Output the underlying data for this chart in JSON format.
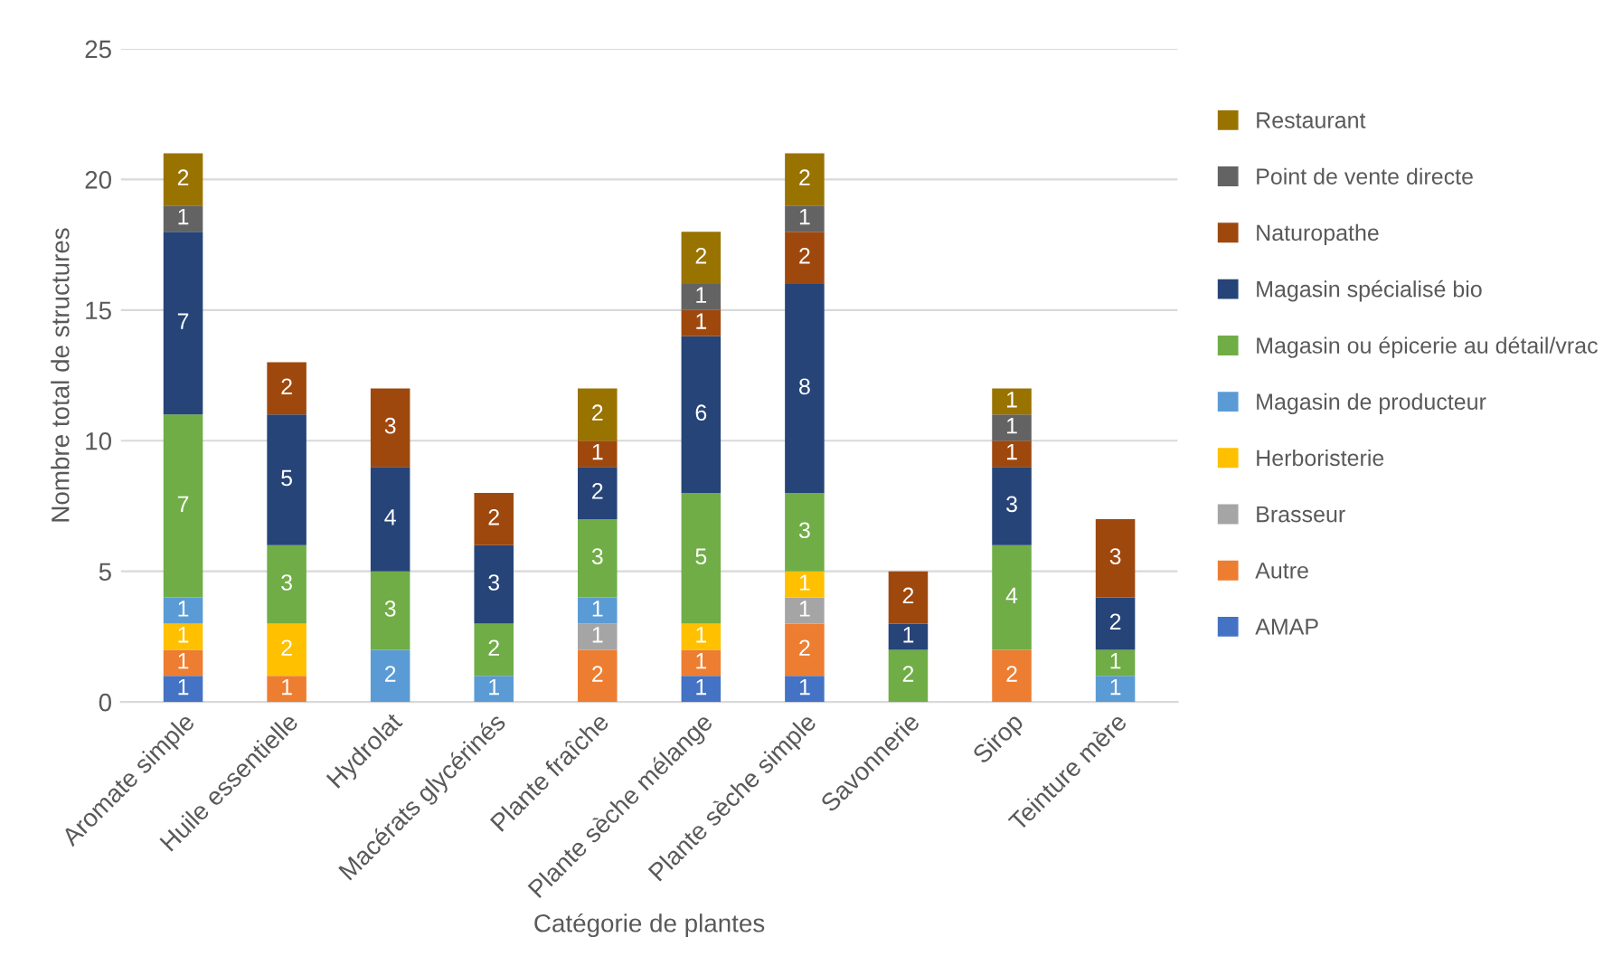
{
  "chart_data": {
    "type": "bar",
    "stacked": true,
    "xlabel": "Catégorie de plantes",
    "ylabel": "Nombre total de structures",
    "categories": [
      "Aromate simple",
      "Huile essentielle",
      "Hydrolat",
      "Macérats glycérinés",
      "Plante fraîche",
      "Plante sèche mélange",
      "Plante sèche simple",
      "Savonnerie",
      "Sirop",
      "Teinture mère"
    ],
    "series": [
      {
        "name": "AMAP",
        "color": "#4472c4",
        "values": [
          1,
          null,
          null,
          null,
          null,
          1,
          1,
          null,
          null,
          null
        ]
      },
      {
        "name": "Autre",
        "color": "#ed7d31",
        "values": [
          1,
          1,
          null,
          null,
          2,
          1,
          2,
          null,
          2,
          null
        ]
      },
      {
        "name": "Brasseur",
        "color": "#a5a5a5",
        "values": [
          null,
          null,
          null,
          null,
          1,
          null,
          1,
          null,
          null,
          null
        ]
      },
      {
        "name": "Herboristerie",
        "color": "#ffc000",
        "values": [
          1,
          2,
          null,
          null,
          null,
          1,
          1,
          null,
          null,
          null
        ]
      },
      {
        "name": "Magasin de producteur",
        "color": "#5b9bd5",
        "values": [
          1,
          null,
          2,
          1,
          1,
          null,
          null,
          null,
          null,
          1
        ]
      },
      {
        "name": "Magasin ou épicerie au détail/vrac",
        "color": "#70ad47",
        "values": [
          7,
          3,
          3,
          2,
          3,
          5,
          3,
          2,
          4,
          1
        ]
      },
      {
        "name": "Magasin spécialisé bio",
        "color": "#264478",
        "values": [
          7,
          5,
          4,
          3,
          2,
          6,
          8,
          1,
          3,
          2
        ]
      },
      {
        "name": "Naturopathe",
        "color": "#9e480e",
        "values": [
          null,
          2,
          3,
          2,
          1,
          1,
          2,
          2,
          1,
          3
        ]
      },
      {
        "name": "Point de vente directe",
        "color": "#636363",
        "values": [
          1,
          null,
          null,
          null,
          null,
          1,
          1,
          null,
          1,
          null
        ]
      },
      {
        "name": "Restaurant",
        "color": "#997300",
        "values": [
          2,
          null,
          null,
          null,
          2,
          2,
          2,
          null,
          1,
          null
        ]
      }
    ],
    "ylim": [
      0,
      25
    ],
    "yticks": [
      0,
      5,
      10,
      15,
      20,
      25
    ],
    "grid": "y",
    "legend": "right",
    "data_labels": true
  }
}
